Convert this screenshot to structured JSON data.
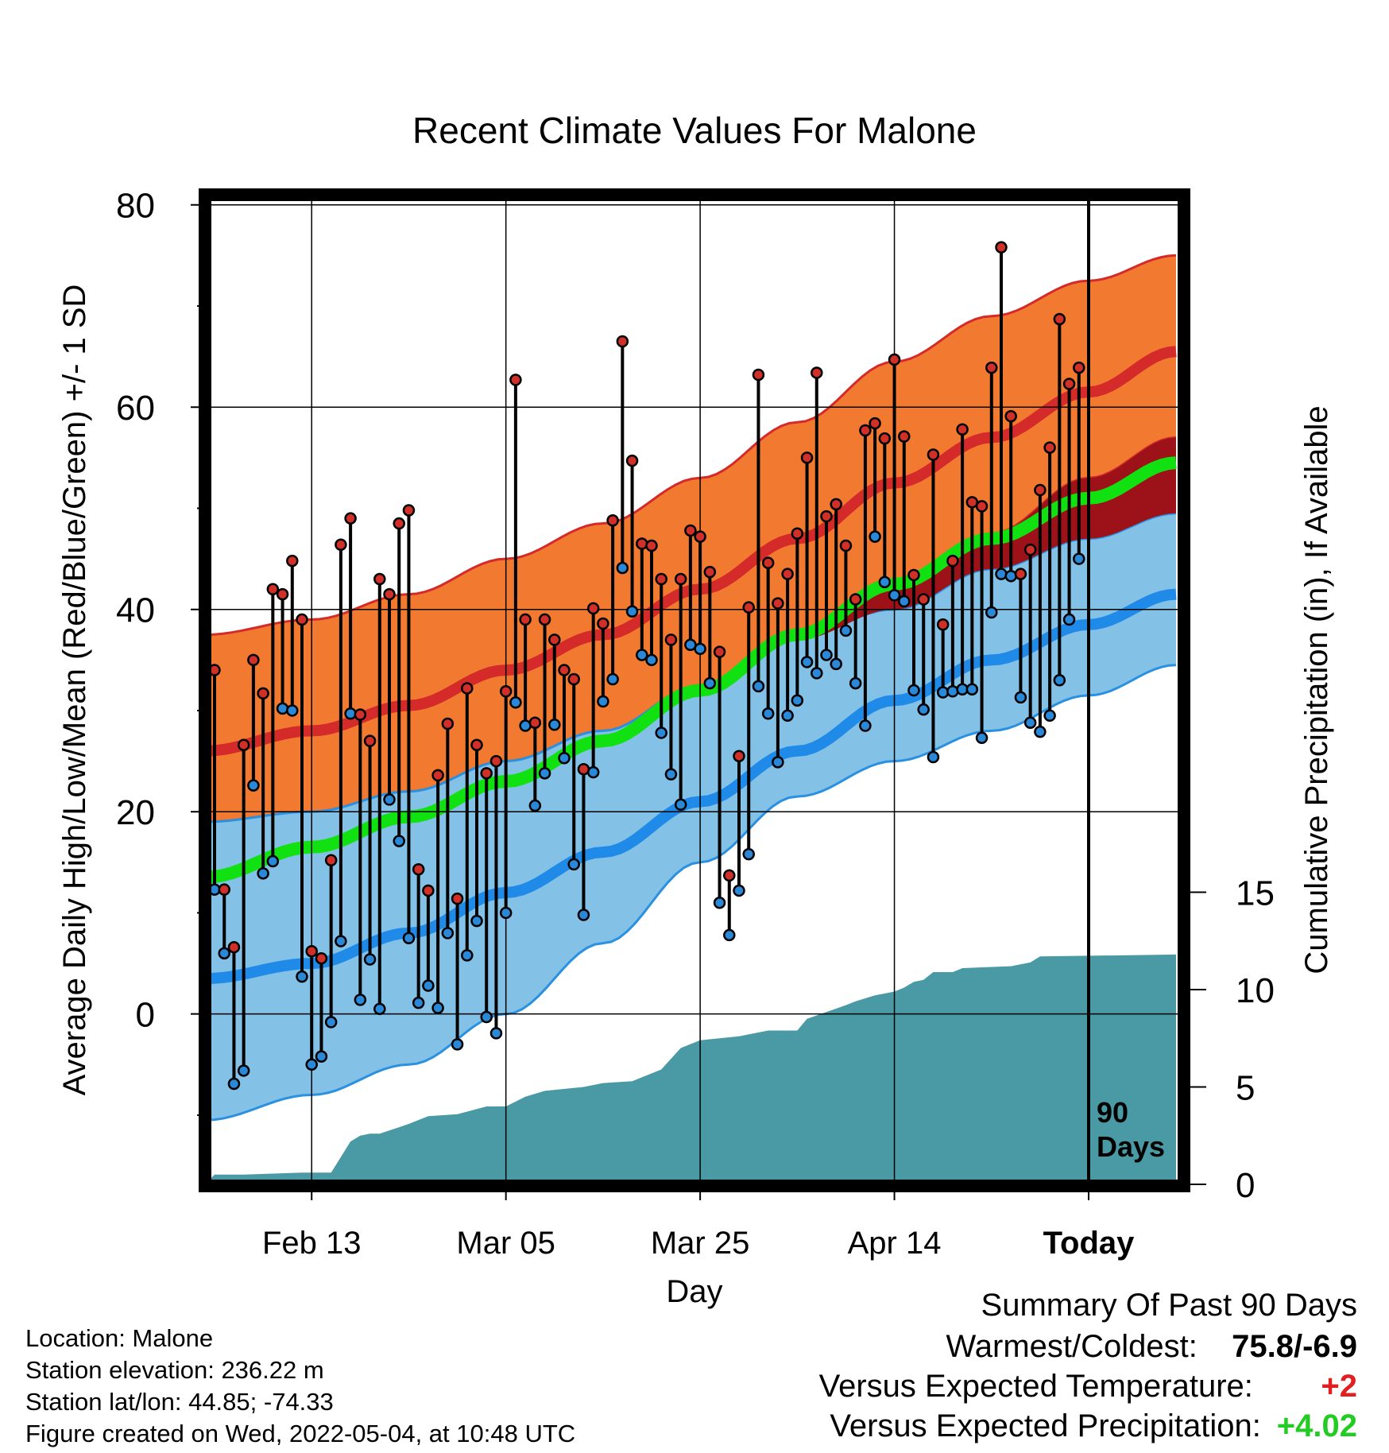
{
  "chart_data": {
    "type": "line",
    "title": "Recent Climate Values For Malone",
    "xlabel": "Day",
    "ylabel": "Average Daily High/Low/Mean (Red/Blue/Green) +/- 1 SD",
    "y2label": "Cumulative Precipitation (in), If Available",
    "ylim": [
      -17,
      81
    ],
    "y2lim": [
      0,
      50
    ],
    "yticks": [
      0,
      20,
      40,
      60,
      80
    ],
    "y2ticks": [
      0,
      5,
      10,
      15
    ],
    "x_tick_labels": [
      {
        "label": "Feb 13",
        "day": 10
      },
      {
        "label": "Mar 05",
        "day": 30
      },
      {
        "label": "Mar 25",
        "day": 50
      },
      {
        "label": "Apr 14",
        "day": 70
      },
      {
        "label": "Today",
        "day": 90
      }
    ],
    "today_marker": {
      "day": 90,
      "label": "90 Days"
    },
    "normals": {
      "days": [
        -1,
        10,
        20,
        30,
        40,
        50,
        60,
        70,
        80,
        90,
        99
      ],
      "high_mean": [
        26,
        28,
        30.5,
        34,
        37.5,
        42,
        47,
        52.5,
        57,
        61.5,
        65.5
      ],
      "high_sd_upper": [
        37.5,
        39,
        41.5,
        45,
        48.5,
        53,
        58.5,
        64.5,
        69,
        72.5,
        75
      ],
      "high_sd_lower": [
        19,
        20,
        22,
        25,
        28,
        32.5,
        37,
        42.5,
        47.5,
        53,
        57
      ],
      "low_mean": [
        3.5,
        5,
        8,
        12,
        16,
        21,
        26,
        31,
        35,
        38.5,
        41.5
      ],
      "low_sd_upper": [
        19,
        20,
        22,
        25,
        28,
        32.5,
        37.5,
        40,
        44,
        47,
        49.5
      ],
      "low_sd_lower": [
        -10.5,
        -8,
        -5,
        0,
        7,
        15,
        21.5,
        25,
        28,
        31.5,
        34.5
      ],
      "avg_mean": [
        13.5,
        16.5,
        19.5,
        23,
        27,
        32,
        37.5,
        42.5,
        47,
        51,
        54.5
      ]
    },
    "series": [
      {
        "name": "High",
        "color": "#dd2020",
        "values": [
          34,
          12.3,
          6.6,
          26.6,
          35,
          31.7,
          42,
          41.5,
          44.8,
          39,
          6.2,
          5.5,
          15.2,
          46.4,
          49,
          29.6,
          27,
          43,
          41.5,
          48.5,
          49.8,
          14.3,
          12.2,
          23.6,
          28.7,
          11.4,
          32.2,
          26.6,
          23.8,
          25,
          31.9,
          62.7,
          39,
          28.8,
          39,
          37,
          34,
          33.1,
          24.2,
          40.1,
          38.6,
          48.8,
          66.5,
          54.7,
          46.5,
          46.3,
          43,
          37,
          43,
          47.8,
          47.2,
          43.7,
          35.8,
          13.7,
          25.5,
          40.2,
          63.2,
          44.6,
          40.6,
          43.5,
          47.5,
          55,
          63.4,
          49.2,
          50.4,
          46.3,
          41,
          57.7,
          58.4,
          56.9,
          64.7,
          57.1,
          43.4,
          41,
          55.3,
          38.5,
          44.8,
          57.8,
          50.6,
          50.2,
          63.9,
          75.8,
          59.1,
          43.5,
          45.9,
          51.8,
          56,
          68.7,
          62.3,
          63.9
        ]
      },
      {
        "name": "Low",
        "color": "#2a88d8",
        "values": [
          12.3,
          6,
          -6.9,
          -5.6,
          22.6,
          13.9,
          15.1,
          30.2,
          30,
          3.7,
          -5,
          -4.2,
          -0.8,
          7.2,
          29.7,
          1.4,
          5.4,
          0.5,
          21.2,
          17.1,
          7.5,
          1.1,
          2.8,
          0.6,
          8,
          -3,
          5.8,
          9.2,
          -0.3,
          -1.9,
          10,
          30.8,
          28.5,
          20.6,
          23.8,
          28.6,
          25.3,
          14.8,
          9.8,
          23.9,
          30.9,
          33.1,
          44.1,
          39.8,
          35.5,
          35,
          27.8,
          23.7,
          20.7,
          36.5,
          36.1,
          32.7,
          11,
          7.8,
          12.2,
          15.8,
          32.4,
          29.7,
          24.9,
          29.5,
          31,
          34.8,
          33.7,
          35.5,
          34.6,
          37.9,
          32.7,
          28.5,
          47.2,
          42.7,
          41.4,
          40.8,
          32,
          30.1,
          25.4,
          31.8,
          31.9,
          32.1,
          32.1,
          27.3,
          39.7,
          43.5,
          43.3,
          31.3,
          28.8,
          27.9,
          29.5,
          33,
          39,
          45
        ]
      }
    ],
    "precip_cumulative": {
      "days": [
        -1,
        0,
        3,
        9,
        12,
        13,
        14,
        15,
        16,
        17,
        20,
        22,
        25,
        28,
        30,
        32,
        34,
        38,
        40,
        43,
        46,
        48,
        50,
        52,
        54,
        57,
        60,
        61,
        65,
        66,
        68,
        70,
        71,
        72,
        73,
        74,
        76,
        77,
        82,
        84,
        85,
        99
      ],
      "values": [
        0,
        0.5,
        0.5,
        0.6,
        0.6,
        1.4,
        2.2,
        2.5,
        2.6,
        2.6,
        3.1,
        3.5,
        3.6,
        4,
        4,
        4.5,
        4.8,
        5,
        5.2,
        5.3,
        5.9,
        7,
        7.4,
        7.5,
        7.6,
        7.9,
        7.9,
        8.5,
        9.2,
        9.4,
        9.7,
        9.9,
        10.1,
        10.4,
        10.5,
        10.9,
        10.9,
        11.1,
        11.2,
        11.4,
        11.7,
        11.8
      ]
    }
  },
  "footer": {
    "location": "Location: Malone",
    "elevation": "Station elevation: 236.22 m",
    "latlon": "Station lat/lon: 44.85; -74.33",
    "created": "Figure created on Wed, 2022-05-04, at 10:48 UTC"
  },
  "summary": {
    "title": "Summary Of Past 90 Days",
    "warmest_coldest_label": "Warmest/Coldest:",
    "warmest_coldest_value": "75.8/-6.9",
    "temp_label": "Versus Expected Temperature:",
    "temp_value": "+2",
    "precip_label": "Versus Expected Precipitation:",
    "precip_value": "+4.02",
    "colors": {
      "temp": "#e02020",
      "precip": "#22cc22"
    }
  },
  "colors": {
    "high_band": "#f27a30",
    "high_mean": "#d42a2a",
    "low_band": "#84c1e6",
    "low_mean": "#1f8ae8",
    "overlap": "#9c1218",
    "avg_mean": "#11e011",
    "precip": "#4a9aa5",
    "high_dot": "#d03028",
    "low_dot": "#2a88d8"
  }
}
